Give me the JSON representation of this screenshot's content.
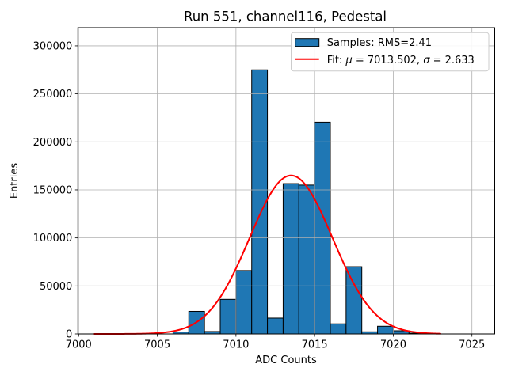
{
  "chart_data": {
    "type": "bar",
    "subtype": "histogram",
    "title": "Run 551, channel116, Pedestal",
    "xlabel": "ADC Counts",
    "ylabel": "Entries",
    "xlim": [
      6999.95,
      7026.45
    ],
    "ylim": [
      0,
      318900
    ],
    "xticks": [
      7000,
      7005,
      7010,
      7015,
      7020,
      7025
    ],
    "yticks": [
      0,
      50000,
      100000,
      150000,
      200000,
      250000,
      300000
    ],
    "grid": true,
    "grid_color": "#b0b0b0",
    "bar_color": "#1f77b4",
    "bar_edge_color": "#000000",
    "histogram": {
      "bin_width": 1,
      "bin_left_edges": [
        7006,
        7007,
        7008,
        7009,
        7010,
        7011,
        7012,
        7013,
        7014,
        7015,
        7016,
        7017,
        7018,
        7019,
        7020,
        7021
      ],
      "counts": [
        2000,
        23500,
        2500,
        36000,
        66000,
        275000,
        16500,
        156500,
        155000,
        220500,
        10500,
        70000,
        2200,
        8000,
        3300,
        800
      ]
    },
    "fit_curve": {
      "type": "gaussian",
      "mu": 7013.502,
      "sigma": 2.633,
      "peak": 165000,
      "x_start": 7001,
      "x_end": 7023,
      "color": "#ff0000"
    },
    "legend": {
      "position": "upper right",
      "samples_entry": {
        "marker": "patch",
        "color": "#1f77b4",
        "label": "Samples: RMS=2.41"
      },
      "fit_entry": {
        "marker": "line",
        "color": "#ff0000",
        "label": "Fit: μ = 7013.502, σ = 2.633",
        "parts": {
          "prefix": "Fit: ",
          "mu_symbol": "μ",
          "after_mu": " = 7013.502, ",
          "sigma_symbol": "σ",
          "after_sigma": " = 2.633"
        }
      }
    }
  }
}
